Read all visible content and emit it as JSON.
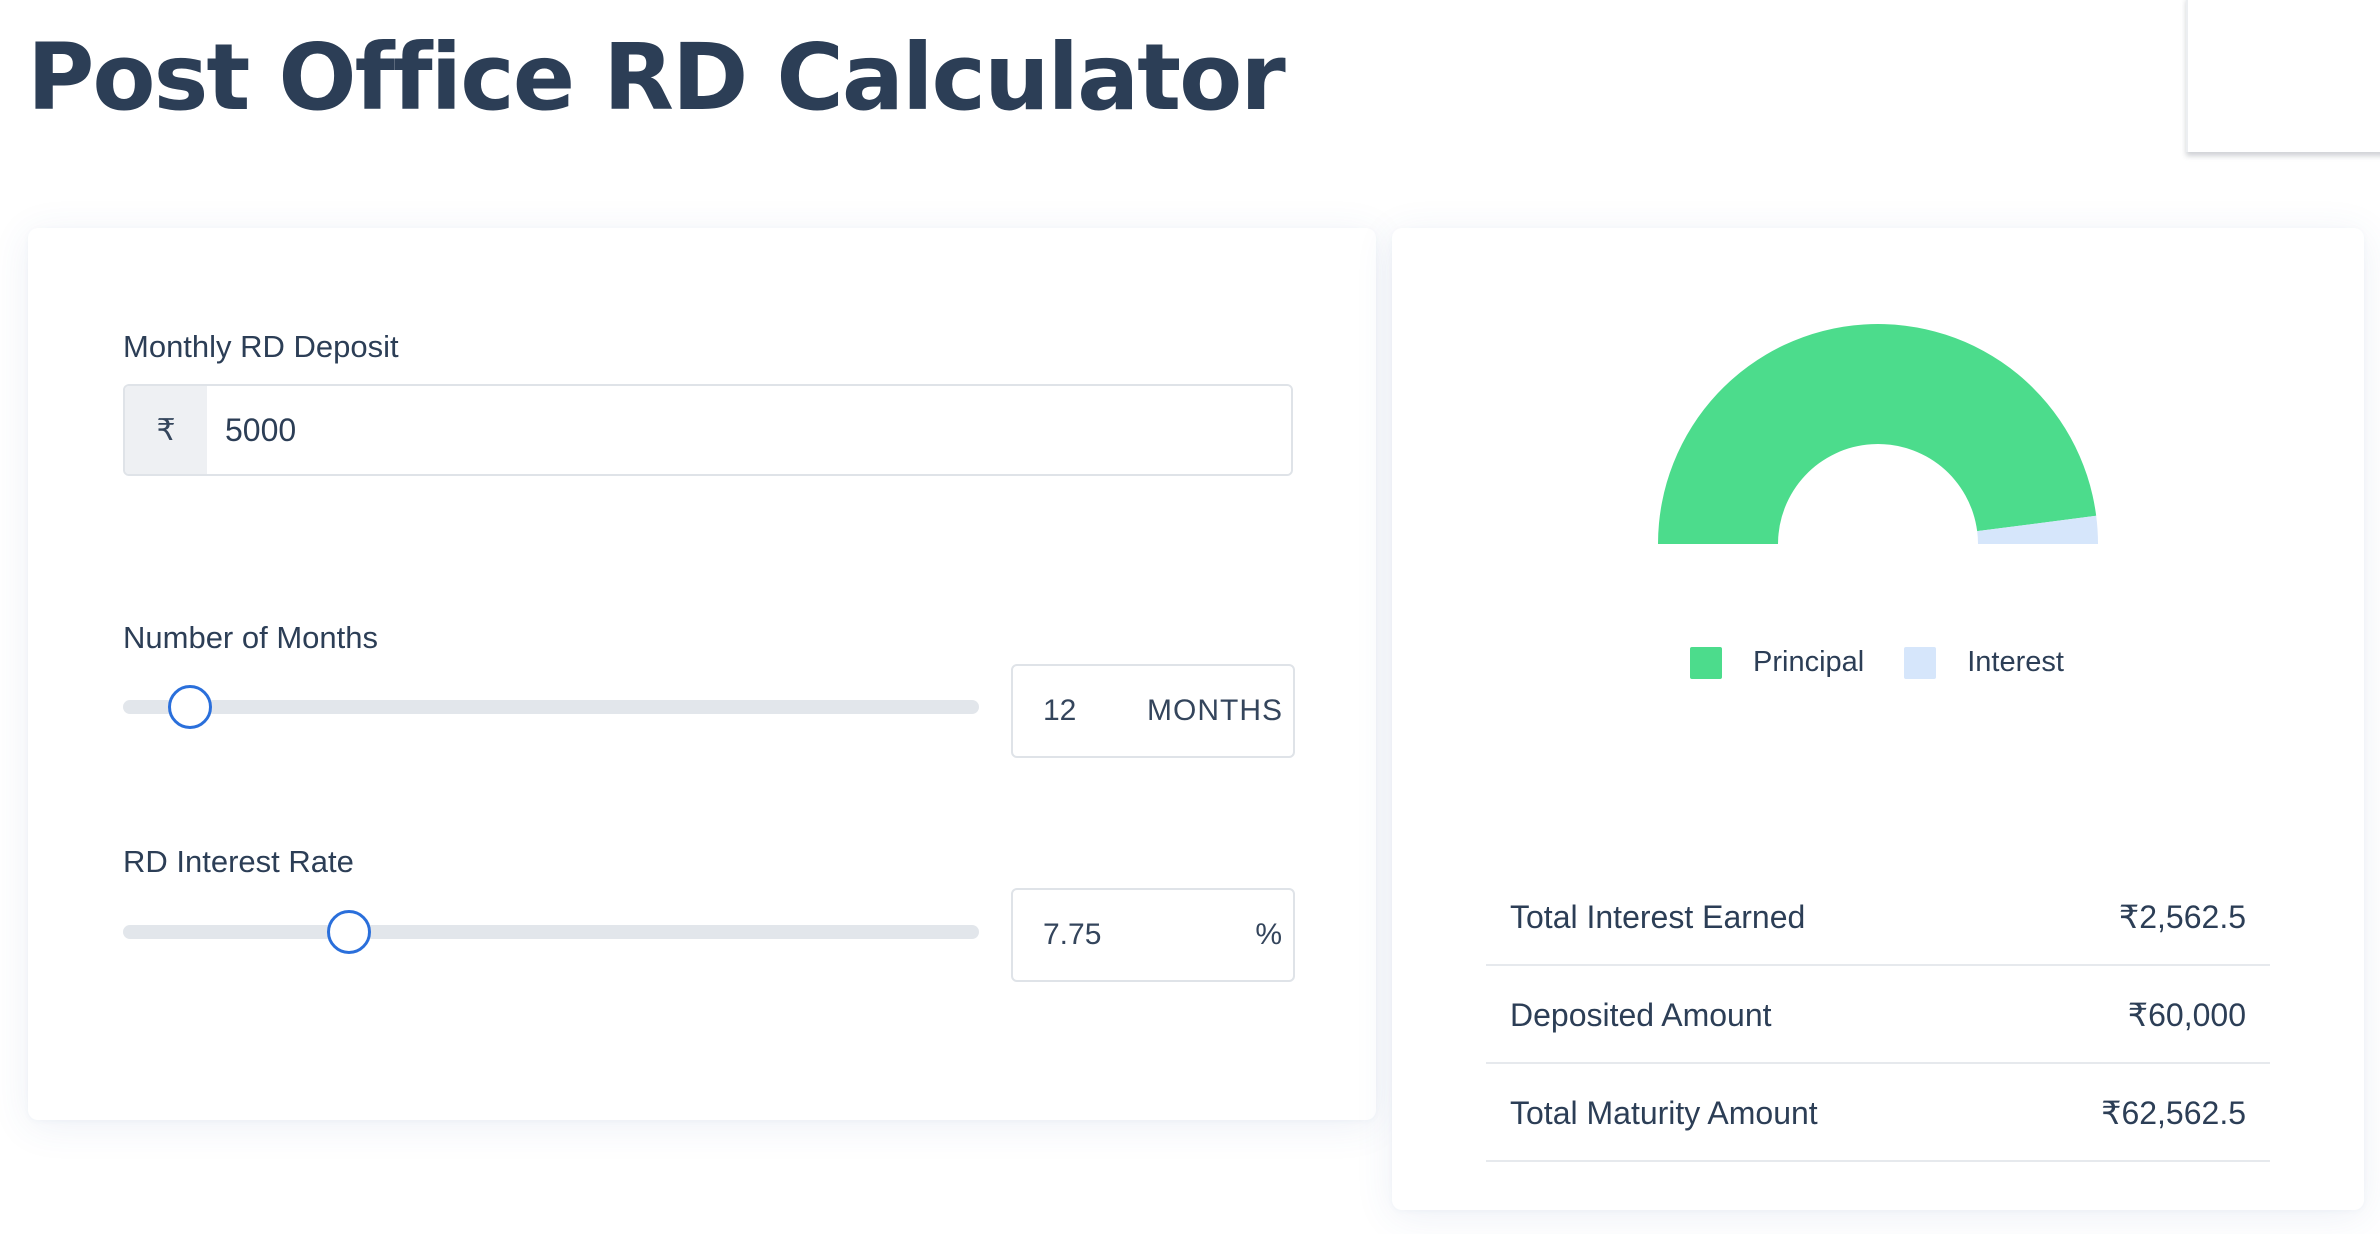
{
  "page": {
    "title": "Post Office RD Calculator"
  },
  "inputs": {
    "deposit": {
      "label": "Monthly RD Deposit",
      "currency_symbol": "₹",
      "value": "5000"
    },
    "months": {
      "label": "Number of Months",
      "value": "12",
      "unit": "MONTHS",
      "slider_fraction": 0.078
    },
    "rate": {
      "label": "RD Interest Rate",
      "value": "7.75",
      "unit": "%",
      "slider_fraction": 0.264
    }
  },
  "chart_data": {
    "type": "pie",
    "style": "semi-donut",
    "slices": [
      {
        "name": "Principal",
        "value": 60000,
        "color": "#4cdc8c"
      },
      {
        "name": "Interest",
        "value": 2562.5,
        "color": "#d6e6fb"
      }
    ],
    "legend_position": "bottom"
  },
  "legend": {
    "principal": "Principal",
    "interest": "Interest"
  },
  "colors": {
    "principal": "#4cdc8c",
    "interest": "#d6e6fb",
    "accent": "#2a6fdb",
    "text": "#2c3e56"
  },
  "summary": {
    "total_interest_label": "Total Interest Earned",
    "total_interest_value": "₹2,562.5",
    "deposited_label": "Deposited Amount",
    "deposited_value": "₹60,000",
    "maturity_label": "Total Maturity Amount",
    "maturity_value": "₹62,562.5"
  }
}
